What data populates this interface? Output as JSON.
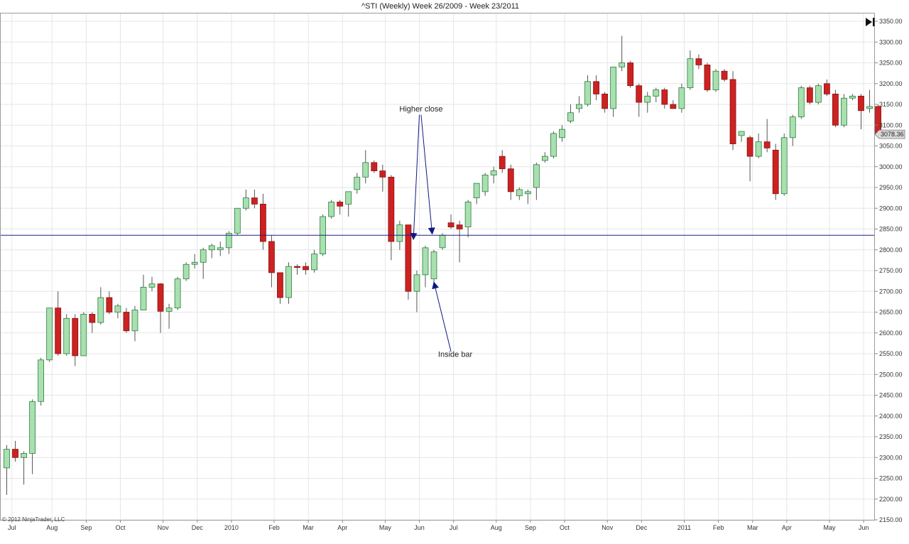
{
  "copyright": "© 2012 NinjaTrader, LLC",
  "colors": {
    "up_fill": "#a8e0b0",
    "up_stroke": "#2e7d3e",
    "down_fill": "#cc2222",
    "down_stroke": "#8a1010",
    "wick": "#555555",
    "grid": "#e6e6e6",
    "hline": "#1a237e",
    "arrow": "#101880"
  },
  "chart_data": {
    "type": "candlestick",
    "title": "^STI (Weekly)  Week 26/2009 - Week 23/2011",
    "ylim": [
      2150,
      3375
    ],
    "y_ticks": [
      2150,
      2200,
      2250,
      2300,
      2350,
      2400,
      2450,
      2500,
      2550,
      2600,
      2650,
      2700,
      2750,
      2800,
      2850,
      2900,
      2950,
      3000,
      3050,
      3100,
      3150,
      3200,
      3250,
      3300,
      3350
    ],
    "y_tick_labels": [
      "2150.00",
      "2200.00",
      "2250.00",
      "2300.00",
      "2350.00",
      "2400.00",
      "2450.00",
      "2500.00",
      "2550.00",
      "2600.00",
      "2650.00",
      "2700.00",
      "2750.00",
      "2800.00",
      "2850.00",
      "2900.00",
      "2950.00",
      "3000.00",
      "3050.00",
      "3100.00",
      "3150.00",
      "3200.00",
      "3250.00",
      "3300.00",
      "3350.00"
    ],
    "x_labels": [
      {
        "label": "Jul",
        "index": 0.6
      },
      {
        "label": "Aug",
        "index": 5.3
      },
      {
        "label": "Sep",
        "index": 9.3
      },
      {
        "label": "Oct",
        "index": 13.3
      },
      {
        "label": "Nov",
        "index": 18.3
      },
      {
        "label": "Dec",
        "index": 22.3
      },
      {
        "label": "2010",
        "index": 26.3
      },
      {
        "label": "Feb",
        "index": 31.3
      },
      {
        "label": "Mar",
        "index": 35.3
      },
      {
        "label": "Apr",
        "index": 39.3
      },
      {
        "label": "May",
        "index": 44.3
      },
      {
        "label": "Jun",
        "index": 48.3
      },
      {
        "label": "Jul",
        "index": 52.3
      },
      {
        "label": "Aug",
        "index": 57.3
      },
      {
        "label": "Sep",
        "index": 61.3
      },
      {
        "label": "Oct",
        "index": 65.3
      },
      {
        "label": "Nov",
        "index": 70.3
      },
      {
        "label": "Dec",
        "index": 74.3
      },
      {
        "label": "2011",
        "index": 79.3
      },
      {
        "label": "Feb",
        "index": 83.3
      },
      {
        "label": "Mar",
        "index": 87.3
      },
      {
        "label": "Apr",
        "index": 91.3
      },
      {
        "label": "May",
        "index": 96.3
      },
      {
        "label": "Jun",
        "index": 100.3
      }
    ],
    "horizontal_line": 2835,
    "last_price": 3078,
    "last_price_label": "3078.36",
    "candles": [
      {
        "o": 2275,
        "h": 2330,
        "l": 2210,
        "c": 2320
      },
      {
        "o": 2320,
        "h": 2340,
        "l": 2290,
        "c": 2300
      },
      {
        "o": 2300,
        "h": 2315,
        "l": 2235,
        "c": 2310
      },
      {
        "o": 2310,
        "h": 2440,
        "l": 2260,
        "c": 2435
      },
      {
        "o": 2435,
        "h": 2540,
        "l": 2425,
        "c": 2535
      },
      {
        "o": 2535,
        "h": 2660,
        "l": 2530,
        "c": 2660
      },
      {
        "o": 2660,
        "h": 2700,
        "l": 2545,
        "c": 2550
      },
      {
        "o": 2550,
        "h": 2645,
        "l": 2545,
        "c": 2635
      },
      {
        "o": 2635,
        "h": 2645,
        "l": 2520,
        "c": 2545
      },
      {
        "o": 2545,
        "h": 2650,
        "l": 2545,
        "c": 2645
      },
      {
        "o": 2645,
        "h": 2650,
        "l": 2600,
        "c": 2625
      },
      {
        "o": 2625,
        "h": 2710,
        "l": 2620,
        "c": 2685
      },
      {
        "o": 2685,
        "h": 2700,
        "l": 2645,
        "c": 2650
      },
      {
        "o": 2650,
        "h": 2670,
        "l": 2635,
        "c": 2665
      },
      {
        "o": 2650,
        "h": 2660,
        "l": 2600,
        "c": 2605
      },
      {
        "o": 2605,
        "h": 2665,
        "l": 2580,
        "c": 2655
      },
      {
        "o": 2655,
        "h": 2740,
        "l": 2655,
        "c": 2710
      },
      {
        "o": 2710,
        "h": 2735,
        "l": 2700,
        "c": 2718
      },
      {
        "o": 2718,
        "h": 2720,
        "l": 2600,
        "c": 2652
      },
      {
        "o": 2652,
        "h": 2670,
        "l": 2610,
        "c": 2660
      },
      {
        "o": 2660,
        "h": 2735,
        "l": 2655,
        "c": 2730
      },
      {
        "o": 2730,
        "h": 2770,
        "l": 2725,
        "c": 2765
      },
      {
        "o": 2765,
        "h": 2790,
        "l": 2755,
        "c": 2770
      },
      {
        "o": 2770,
        "h": 2805,
        "l": 2730,
        "c": 2800
      },
      {
        "o": 2800,
        "h": 2815,
        "l": 2780,
        "c": 2810
      },
      {
        "o": 2800,
        "h": 2820,
        "l": 2785,
        "c": 2805
      },
      {
        "o": 2805,
        "h": 2845,
        "l": 2790,
        "c": 2840
      },
      {
        "o": 2840,
        "h": 2900,
        "l": 2835,
        "c": 2900
      },
      {
        "o": 2900,
        "h": 2945,
        "l": 2895,
        "c": 2925
      },
      {
        "o": 2925,
        "h": 2945,
        "l": 2900,
        "c": 2910
      },
      {
        "o": 2910,
        "h": 2935,
        "l": 2800,
        "c": 2820
      },
      {
        "o": 2820,
        "h": 2835,
        "l": 2710,
        "c": 2745
      },
      {
        "o": 2745,
        "h": 2745,
        "l": 2670,
        "c": 2685
      },
      {
        "o": 2685,
        "h": 2770,
        "l": 2670,
        "c": 2760
      },
      {
        "o": 2760,
        "h": 2765,
        "l": 2740,
        "c": 2758
      },
      {
        "o": 2760,
        "h": 2770,
        "l": 2740,
        "c": 2752
      },
      {
        "o": 2752,
        "h": 2800,
        "l": 2745,
        "c": 2790
      },
      {
        "o": 2790,
        "h": 2885,
        "l": 2785,
        "c": 2880
      },
      {
        "o": 2880,
        "h": 2920,
        "l": 2875,
        "c": 2915
      },
      {
        "o": 2915,
        "h": 2920,
        "l": 2885,
        "c": 2905
      },
      {
        "o": 2910,
        "h": 2940,
        "l": 2880,
        "c": 2940
      },
      {
        "o": 2945,
        "h": 2985,
        "l": 2935,
        "c": 2975
      },
      {
        "o": 2975,
        "h": 3040,
        "l": 2960,
        "c": 3010
      },
      {
        "o": 3010,
        "h": 3015,
        "l": 2985,
        "c": 2990
      },
      {
        "o": 2990,
        "h": 3005,
        "l": 2940,
        "c": 2975
      },
      {
        "o": 2975,
        "h": 2980,
        "l": 2775,
        "c": 2820
      },
      {
        "o": 2820,
        "h": 2870,
        "l": 2800,
        "c": 2860
      },
      {
        "o": 2860,
        "h": 2860,
        "l": 2680,
        "c": 2700
      },
      {
        "o": 2700,
        "h": 2750,
        "l": 2650,
        "c": 2740
      },
      {
        "o": 2740,
        "h": 2810,
        "l": 2710,
        "c": 2805
      },
      {
        "o": 2730,
        "h": 2800,
        "l": 2720,
        "c": 2795
      },
      {
        "o": 2805,
        "h": 2840,
        "l": 2800,
        "c": 2835
      },
      {
        "o": 2865,
        "h": 2885,
        "l": 2850,
        "c": 2855
      },
      {
        "o": 2860,
        "h": 2870,
        "l": 2770,
        "c": 2850
      },
      {
        "o": 2855,
        "h": 2920,
        "l": 2830,
        "c": 2915
      },
      {
        "o": 2925,
        "h": 2960,
        "l": 2910,
        "c": 2960
      },
      {
        "o": 2940,
        "h": 2985,
        "l": 2930,
        "c": 2980
      },
      {
        "o": 2980,
        "h": 3000,
        "l": 2960,
        "c": 2990
      },
      {
        "o": 3025,
        "h": 3040,
        "l": 2985,
        "c": 2995
      },
      {
        "o": 2995,
        "h": 3005,
        "l": 2920,
        "c": 2940
      },
      {
        "o": 2930,
        "h": 2950,
        "l": 2920,
        "c": 2945
      },
      {
        "o": 2935,
        "h": 2945,
        "l": 2910,
        "c": 2940
      },
      {
        "o": 2950,
        "h": 3010,
        "l": 2920,
        "c": 3005
      },
      {
        "o": 3015,
        "h": 3035,
        "l": 3010,
        "c": 3025
      },
      {
        "o": 3025,
        "h": 3085,
        "l": 3020,
        "c": 3080
      },
      {
        "o": 3070,
        "h": 3100,
        "l": 3060,
        "c": 3090
      },
      {
        "o": 3110,
        "h": 3150,
        "l": 3105,
        "c": 3130
      },
      {
        "o": 3140,
        "h": 3170,
        "l": 3130,
        "c": 3150
      },
      {
        "o": 3150,
        "h": 3220,
        "l": 3145,
        "c": 3205
      },
      {
        "o": 3205,
        "h": 3220,
        "l": 3160,
        "c": 3175
      },
      {
        "o": 3175,
        "h": 3180,
        "l": 3130,
        "c": 3140
      },
      {
        "o": 3140,
        "h": 3240,
        "l": 3120,
        "c": 3240
      },
      {
        "o": 3240,
        "h": 3315,
        "l": 3230,
        "c": 3250
      },
      {
        "o": 3250,
        "h": 3255,
        "l": 3190,
        "c": 3195
      },
      {
        "o": 3195,
        "h": 3200,
        "l": 3120,
        "c": 3155
      },
      {
        "o": 3155,
        "h": 3180,
        "l": 3130,
        "c": 3170
      },
      {
        "o": 3170,
        "h": 3190,
        "l": 3155,
        "c": 3185
      },
      {
        "o": 3185,
        "h": 3190,
        "l": 3140,
        "c": 3150
      },
      {
        "o": 3150,
        "h": 3160,
        "l": 3140,
        "c": 3140
      },
      {
        "o": 3140,
        "h": 3200,
        "l": 3130,
        "c": 3190
      },
      {
        "o": 3190,
        "h": 3280,
        "l": 3185,
        "c": 3260
      },
      {
        "o": 3260,
        "h": 3270,
        "l": 3235,
        "c": 3245
      },
      {
        "o": 3245,
        "h": 3250,
        "l": 3180,
        "c": 3185
      },
      {
        "o": 3185,
        "h": 3235,
        "l": 3180,
        "c": 3230
      },
      {
        "o": 3230,
        "h": 3235,
        "l": 3205,
        "c": 3210
      },
      {
        "o": 3210,
        "h": 3230,
        "l": 3040,
        "c": 3055
      },
      {
        "o": 3075,
        "h": 3085,
        "l": 3060,
        "c": 3085
      },
      {
        "o": 3070,
        "h": 3075,
        "l": 2965,
        "c": 3025
      },
      {
        "o": 3025,
        "h": 3080,
        "l": 3020,
        "c": 3060
      },
      {
        "o": 3060,
        "h": 3115,
        "l": 3035,
        "c": 3045
      },
      {
        "o": 3040,
        "h": 3055,
        "l": 2920,
        "c": 2935
      },
      {
        "o": 2935,
        "h": 3080,
        "l": 2930,
        "c": 3070
      },
      {
        "o": 3070,
        "h": 3125,
        "l": 3050,
        "c": 3120
      },
      {
        "o": 3120,
        "h": 3195,
        "l": 3115,
        "c": 3190
      },
      {
        "o": 3190,
        "h": 3195,
        "l": 3150,
        "c": 3155
      },
      {
        "o": 3155,
        "h": 3200,
        "l": 3150,
        "c": 3195
      },
      {
        "o": 3200,
        "h": 3210,
        "l": 3170,
        "c": 3175
      },
      {
        "o": 3175,
        "h": 3185,
        "l": 3095,
        "c": 3100
      },
      {
        "o": 3100,
        "h": 3175,
        "l": 3095,
        "c": 3165
      },
      {
        "o": 3165,
        "h": 3175,
        "l": 3160,
        "c": 3170
      },
      {
        "o": 3170,
        "h": 3175,
        "l": 3090,
        "c": 3135
      },
      {
        "o": 3140,
        "h": 3185,
        "l": 3130,
        "c": 3145
      },
      {
        "o": 3145,
        "h": 3150,
        "l": 3075,
        "c": 3078
      }
    ],
    "annotations": [
      {
        "text": "Higher close",
        "x_index": 48.5,
        "y": 3133,
        "arrows": [
          {
            "from_index": 48.3,
            "from_y": 3125,
            "to_index": 47.6,
            "to_y": 2825
          },
          {
            "from_index": 48.5,
            "from_y": 3125,
            "to_index": 49.8,
            "to_y": 2838
          }
        ]
      },
      {
        "text": "Inside bar",
        "x_index": 52.5,
        "y": 2542,
        "arrows": [
          {
            "from_index": 52.0,
            "from_y": 2555,
            "to_index": 50.0,
            "to_y": 2722
          }
        ]
      }
    ]
  }
}
